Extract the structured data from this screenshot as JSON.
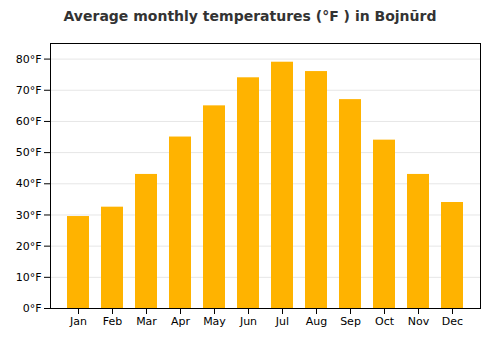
{
  "chart_data": {
    "type": "bar",
    "title": "Average monthly temperatures (°F ) in Bojnūrd",
    "categories": [
      "Jan",
      "Feb",
      "Mar",
      "Apr",
      "May",
      "Jun",
      "Jul",
      "Aug",
      "Sep",
      "Oct",
      "Nov",
      "Dec"
    ],
    "values": [
      29.5,
      32.5,
      43,
      55,
      65,
      74,
      79,
      76,
      67,
      54,
      43,
      34
    ],
    "color": "#FFB300",
    "ylim": [
      0,
      85
    ],
    "yticks": [
      {
        "value": 0,
        "label": "0°F"
      },
      {
        "value": 10,
        "label": "10°F"
      },
      {
        "value": 20,
        "label": "20°F"
      },
      {
        "value": 30,
        "label": "30°F"
      },
      {
        "value": 40,
        "label": "40°F"
      },
      {
        "value": 50,
        "label": "50°F"
      },
      {
        "value": 60,
        "label": "60°F"
      },
      {
        "value": 70,
        "label": "70°F"
      },
      {
        "value": 80,
        "label": "80°F"
      }
    ],
    "grid": true
  }
}
